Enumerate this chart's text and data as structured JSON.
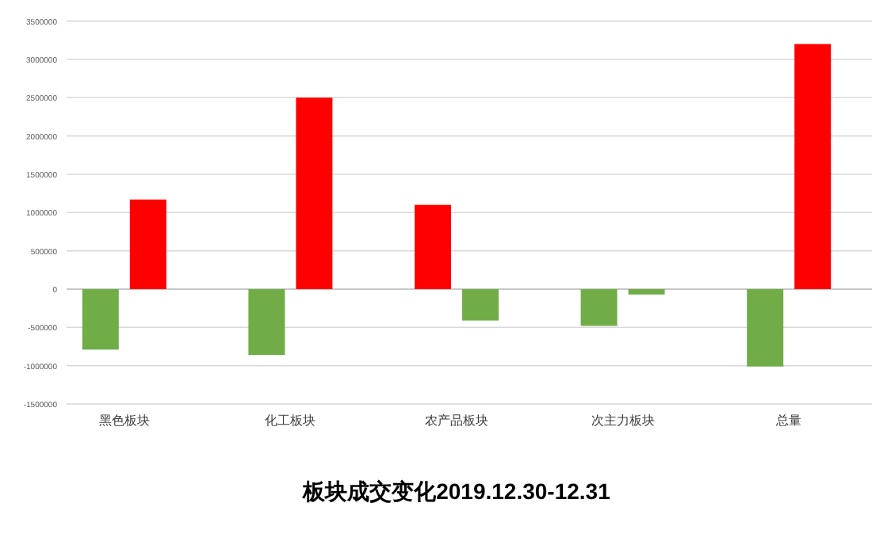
{
  "chart_data": {
    "type": "bar",
    "title": "板块成交变化2019.12.30-12.31",
    "categories": [
      "黑色板块",
      "化工板块",
      "农产品板块",
      "次主力板块",
      "总量"
    ],
    "series": [
      {
        "colors": [
          "#70ad47",
          "#70ad47",
          "#ff0000",
          "#70ad47",
          "#70ad47"
        ],
        "values": [
          -790000,
          -860000,
          1100000,
          -480000,
          -1010000
        ]
      },
      {
        "colors": [
          "#ff0000",
          "#ff0000",
          "#70ad47",
          "#70ad47",
          "#ff0000"
        ],
        "values": [
          1170000,
          2500000,
          -410000,
          -70000,
          3200000
        ]
      }
    ],
    "ylim": [
      -1500000,
      3500000
    ],
    "yticks": [
      -1500000,
      -1000000,
      -500000,
      0,
      500000,
      1000000,
      1500000,
      2000000,
      2500000,
      3000000,
      3500000
    ],
    "grid": "y"
  }
}
